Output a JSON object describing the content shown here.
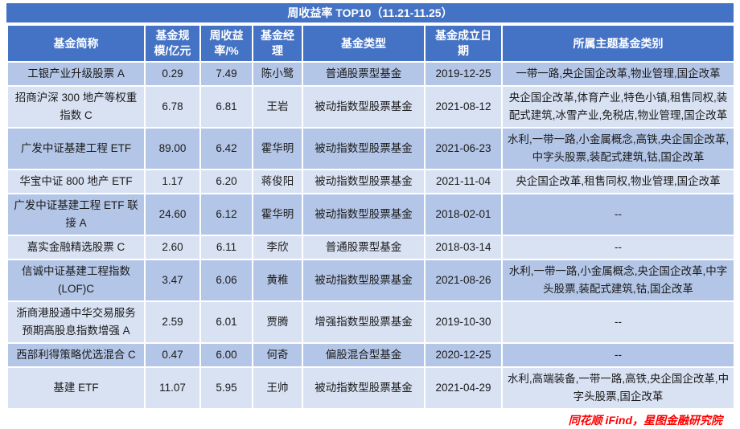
{
  "colors": {
    "header_bg": "#4472C4",
    "row_odd": "#B4C6E7",
    "row_even": "#D9E2F3",
    "border": "#FFFFFF",
    "source_text": "#FF0000"
  },
  "chart_data": {
    "type": "table",
    "title": "周收益率 TOP10（11.21-11.25）",
    "source": "同花顺 iFind，星图金融研究院",
    "columns": [
      "基金简称",
      "基金规模/亿元",
      "周收益率/%",
      "基金经理",
      "基金类型",
      "基金成立日期",
      "所属主题基金类别"
    ],
    "rows": [
      {
        "name": "工银产业升级股票 A",
        "scale": "0.29",
        "weekly_return": "7.49",
        "manager": "陈小鹭",
        "fund_type": "普通股票型基金",
        "inception_date": "2019-12-25",
        "themes": "一带一路,央企国企改革,物业管理,国企改革"
      },
      {
        "name": "招商沪深 300 地产等权重指数 C",
        "scale": "6.78",
        "weekly_return": "6.81",
        "manager": "王岩",
        "fund_type": "被动指数型股票基金",
        "inception_date": "2021-08-12",
        "themes": "央企国企改革,体育产业,特色小镇,租售同权,装配式建筑,冰雪产业,免税店,物业管理,国企改革"
      },
      {
        "name": "广发中证基建工程 ETF",
        "scale": "89.00",
        "weekly_return": "6.42",
        "manager": "霍华明",
        "fund_type": "被动指数型股票基金",
        "inception_date": "2021-06-23",
        "themes": "水利,一带一路,小金属概念,高铁,央企国企改革,中字头股票,装配式建筑,钴,国企改革"
      },
      {
        "name": "华宝中证 800 地产 ETF",
        "scale": "1.17",
        "weekly_return": "6.20",
        "manager": "蒋俊阳",
        "fund_type": "被动指数型股票基金",
        "inception_date": "2021-11-04",
        "themes": "央企国企改革,租售同权,物业管理,国企改革"
      },
      {
        "name": "广发中证基建工程 ETF 联接 A",
        "scale": "24.60",
        "weekly_return": "6.12",
        "manager": "霍华明",
        "fund_type": "被动指数型股票基金",
        "inception_date": "2018-02-01",
        "themes": "--"
      },
      {
        "name": "嘉实金融精选股票 C",
        "scale": "2.60",
        "weekly_return": "6.11",
        "manager": "李欣",
        "fund_type": "普通股票型基金",
        "inception_date": "2018-03-14",
        "themes": "--"
      },
      {
        "name": "信诚中证基建工程指数 (LOF)C",
        "scale": "3.47",
        "weekly_return": "6.06",
        "manager": "黄稚",
        "fund_type": "被动指数型股票基金",
        "inception_date": "2021-08-26",
        "themes": "水利,一带一路,小金属概念,央企国企改革,中字头股票,装配式建筑,钴,国企改革"
      },
      {
        "name": "浙商港股通中华交易服务预期高股息指数增强 A",
        "scale": "2.59",
        "weekly_return": "6.01",
        "manager": "贾腾",
        "fund_type": "增强指数型股票基金",
        "inception_date": "2019-10-30",
        "themes": "--"
      },
      {
        "name": "西部利得策略优选混合 C",
        "scale": "0.47",
        "weekly_return": "6.00",
        "manager": "何奇",
        "fund_type": "偏股混合型基金",
        "inception_date": "2020-12-25",
        "themes": "--"
      },
      {
        "name": "基建 ETF",
        "scale": "11.07",
        "weekly_return": "5.95",
        "manager": "王帅",
        "fund_type": "被动指数型股票基金",
        "inception_date": "2021-04-29",
        "themes": "水利,高端装备,一带一路,高铁,央企国企改革,中字头股票,国企改革"
      }
    ]
  }
}
